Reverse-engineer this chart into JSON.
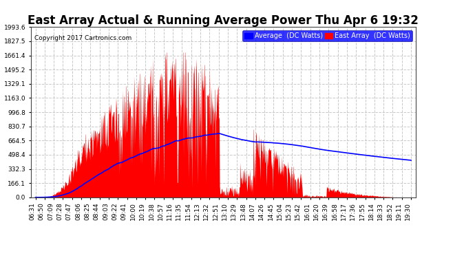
{
  "title": "East Array Actual & Running Average Power Thu Apr 6 19:32",
  "copyright": "Copyright 2017 Cartronics.com",
  "legend_labels": [
    "Average  (DC Watts)",
    "East Array  (DC Watts)"
  ],
  "legend_colors": [
    "blue",
    "red"
  ],
  "y_tick_labels": [
    "0.0",
    "166.1",
    "332.3",
    "498.4",
    "664.5",
    "830.7",
    "996.8",
    "1163.0",
    "1329.1",
    "1495.2",
    "1661.4",
    "1827.5",
    "1993.6"
  ],
  "y_tick_values": [
    0.0,
    166.1,
    332.3,
    498.4,
    664.5,
    830.7,
    996.8,
    1163.0,
    1329.1,
    1495.2,
    1661.4,
    1827.5,
    1993.6
  ],
  "ylim": [
    0,
    1993.6
  ],
  "background_color": "#ffffff",
  "plot_bg_color": "#ffffff",
  "grid_color": "#bbbbbb",
  "title_fontsize": 12,
  "bar_color": "red",
  "avg_line_color": "blue",
  "x_label_rotation": 90,
  "x_tick_labels": [
    "06:31",
    "06:50",
    "07:09",
    "07:28",
    "07:47",
    "08:06",
    "08:25",
    "08:44",
    "09:03",
    "09:22",
    "09:41",
    "10:00",
    "10:19",
    "10:38",
    "10:57",
    "11:16",
    "11:35",
    "11:54",
    "12:13",
    "12:32",
    "12:51",
    "13:10",
    "13:29",
    "13:48",
    "14:07",
    "14:26",
    "14:45",
    "15:04",
    "15:23",
    "15:42",
    "16:01",
    "16:20",
    "16:39",
    "16:58",
    "17:17",
    "17:36",
    "17:55",
    "18:14",
    "18:33",
    "18:52",
    "19:11",
    "19:30"
  ]
}
